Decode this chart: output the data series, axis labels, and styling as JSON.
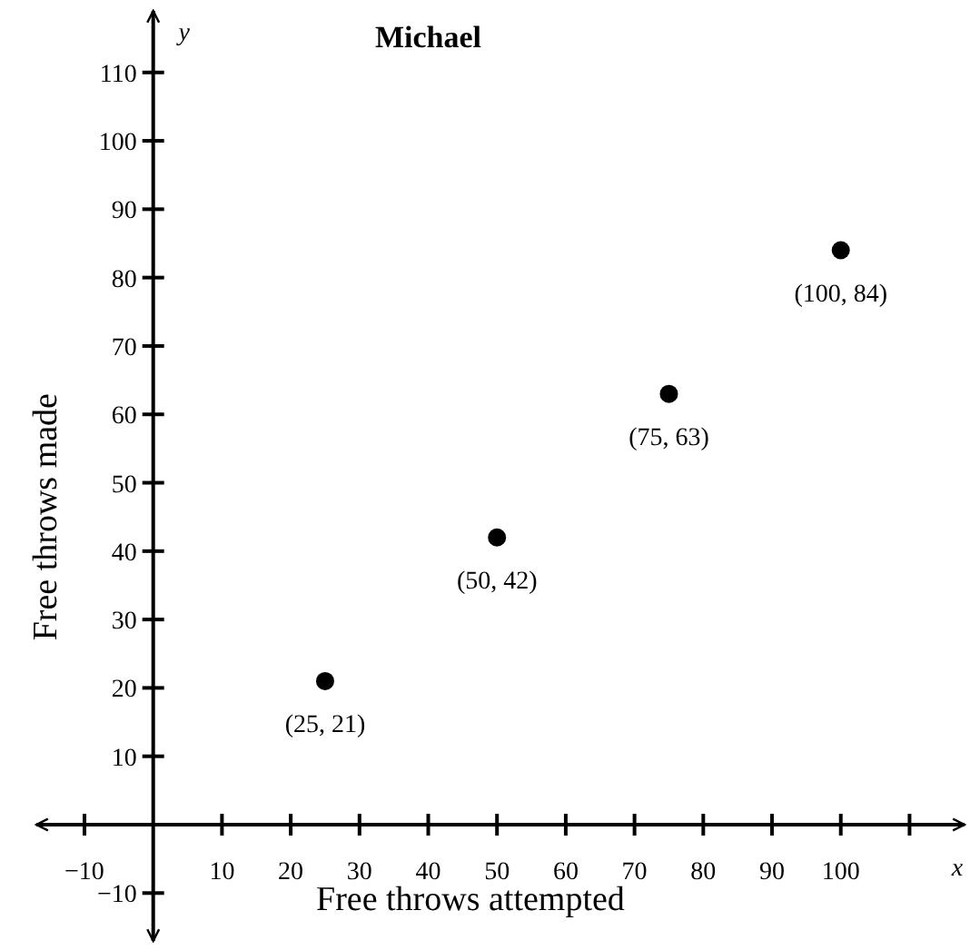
{
  "chart_data": {
    "type": "scatter",
    "title": "Michael",
    "xlabel": "Free throws attempted",
    "ylabel": "Free throws made",
    "annotations": [
      "x",
      "y"
    ],
    "x": [
      25,
      50,
      75,
      100
    ],
    "series": [
      {
        "color": "#000000",
        "values": [
          21,
          42,
          63,
          84
        ],
        "value_labels": [
          "(25, 21)",
          "(50, 42)",
          "(75, 63)",
          "(100, 84)"
        ]
      }
    ],
    "xlim": [
      -17,
      118
    ],
    "ylim": [
      -17,
      119
    ],
    "xticks": [
      {
        "value": -10,
        "label": "−10"
      },
      10,
      20,
      30,
      40,
      50,
      60,
      70,
      80,
      90,
      100,
      {
        "value": 110,
        "label": null
      }
    ],
    "yticks": [
      {
        "value": -10,
        "label": "−10"
      },
      10,
      20,
      30,
      40,
      50,
      60,
      70,
      80,
      90,
      100,
      110
    ],
    "marker": "circle",
    "grid": false
  }
}
